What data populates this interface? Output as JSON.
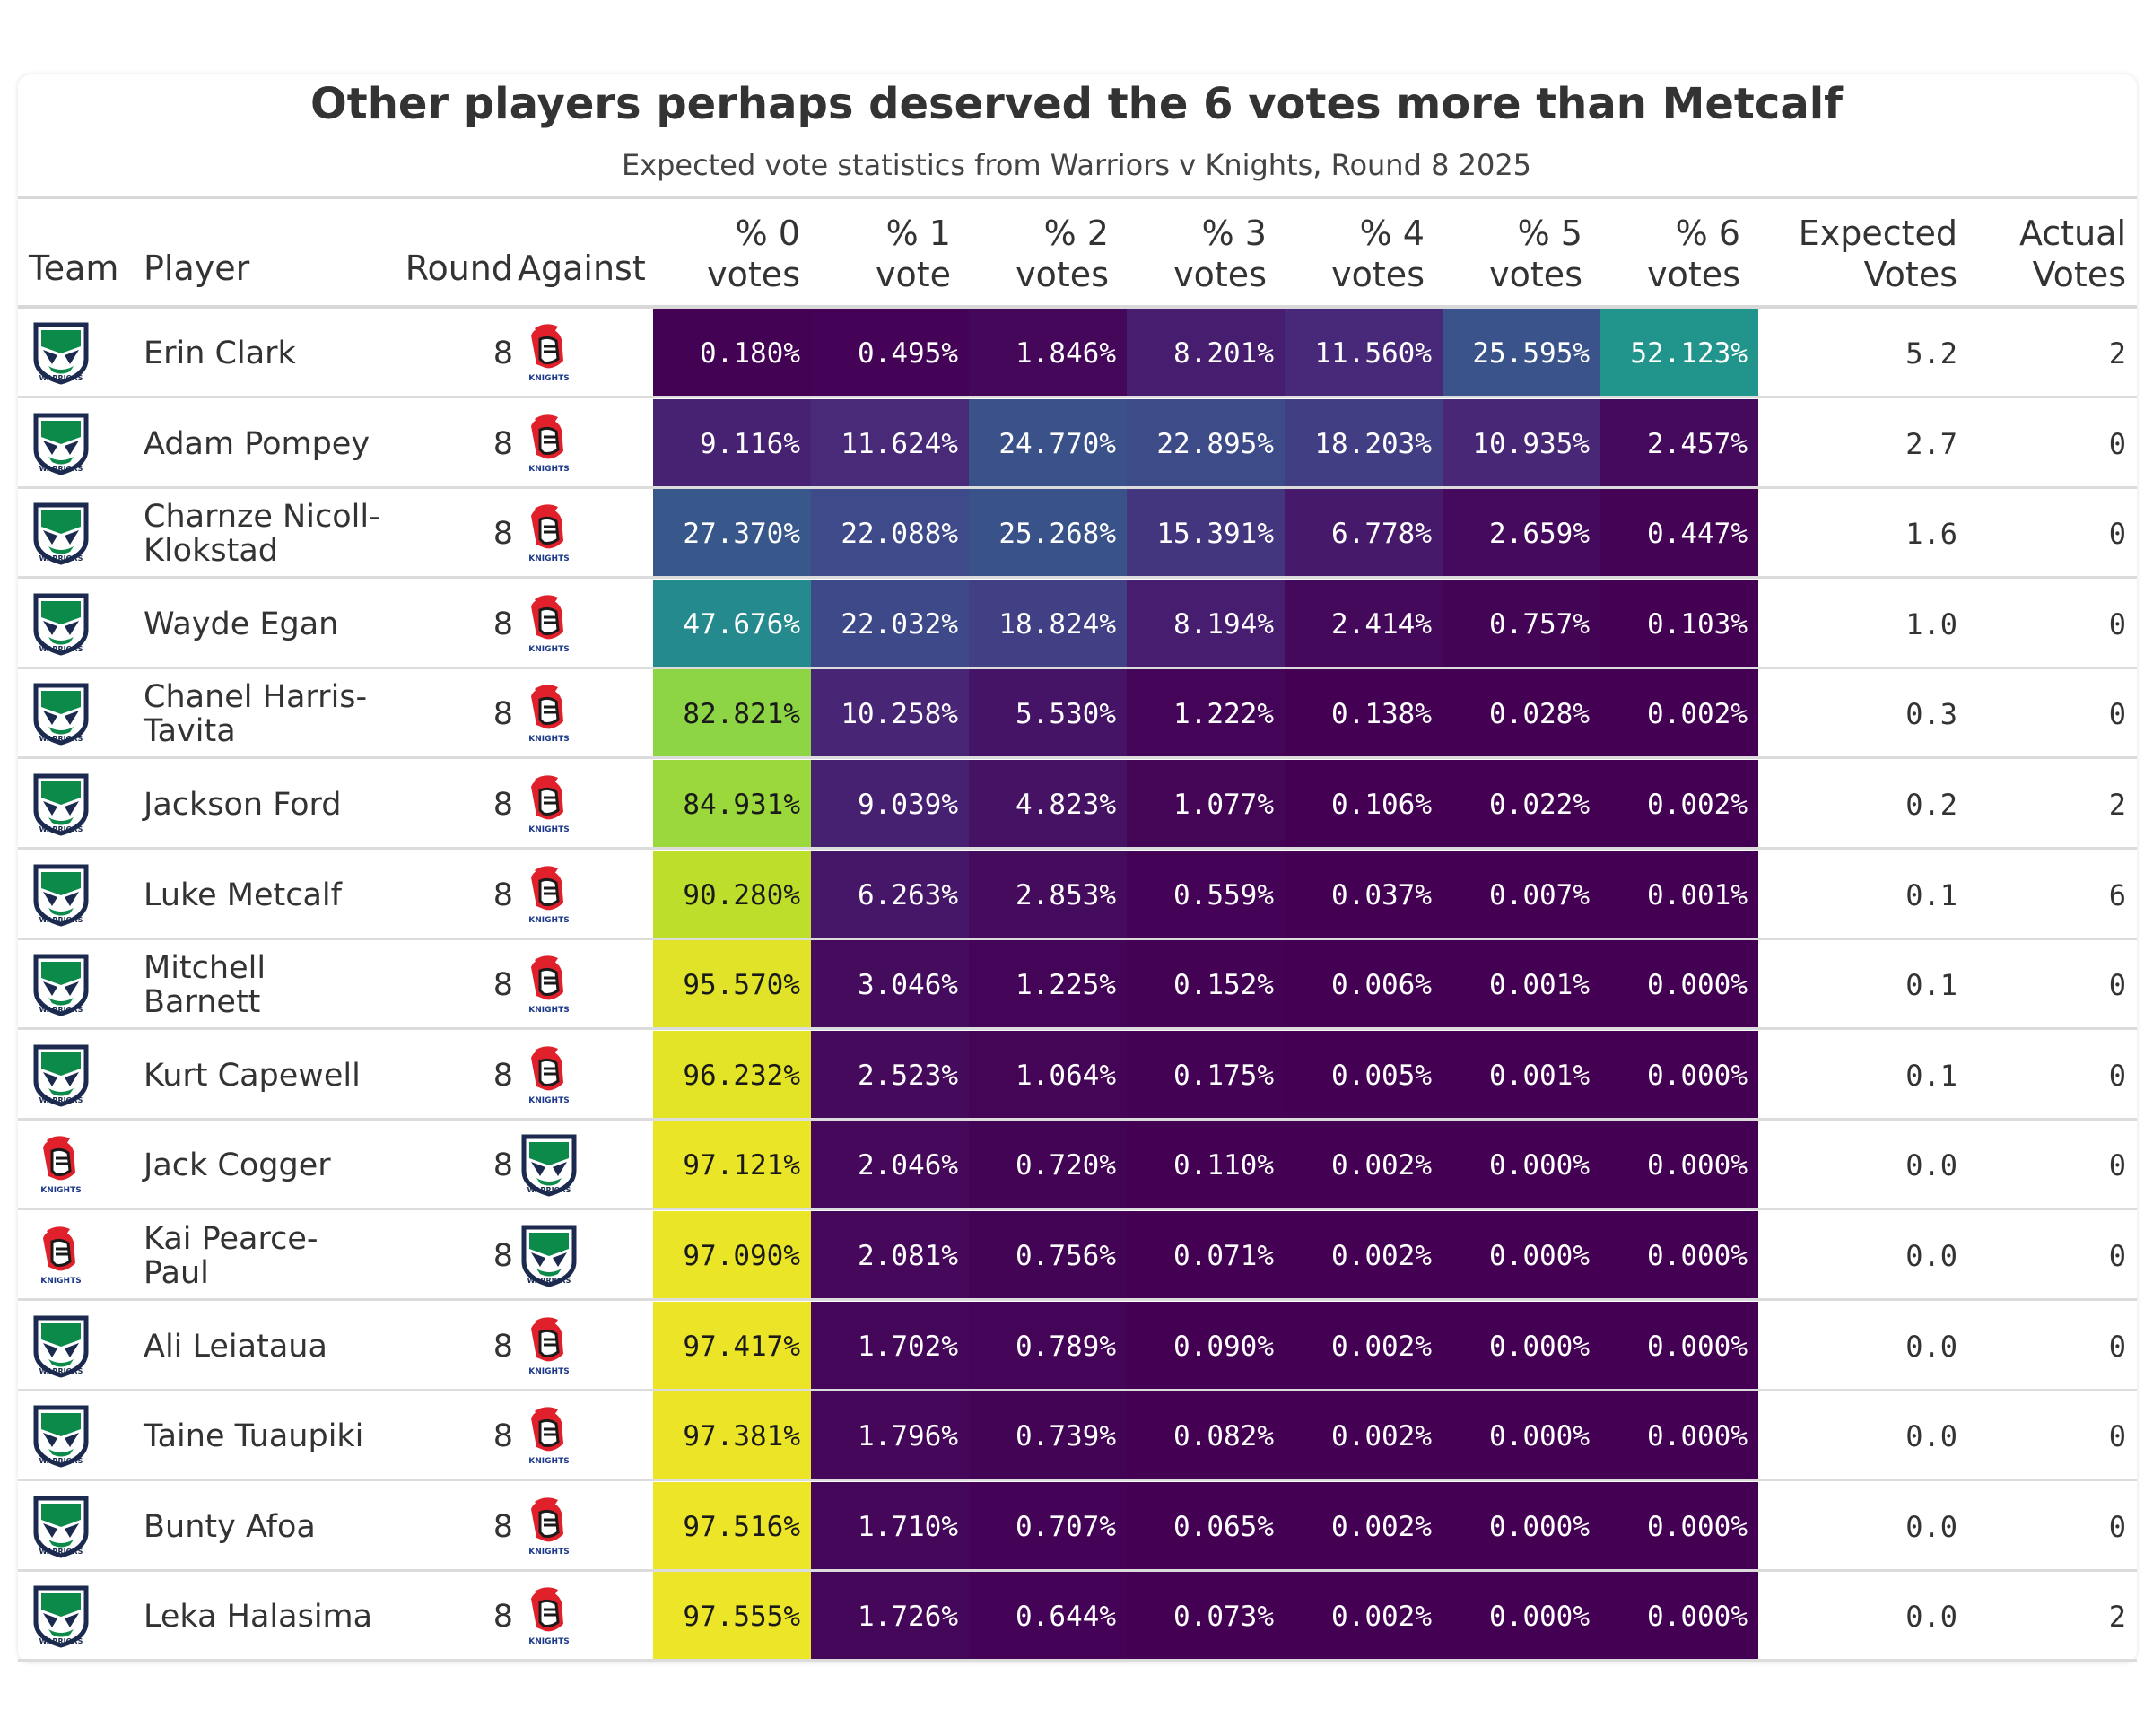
{
  "title": "Other players perhaps deserved the 6 votes more than Metcalf",
  "subtitle": "Expected vote statistics from Warriors v Knights, Round 8 2025",
  "columns": {
    "team": "Team",
    "player": "Player",
    "round": "Round",
    "against": "Against",
    "p0": [
      "% 0",
      "votes"
    ],
    "p1": [
      "% 1",
      "vote"
    ],
    "p2": [
      "% 2",
      "votes"
    ],
    "p3": [
      "% 3",
      "votes"
    ],
    "p4": [
      "% 4",
      "votes"
    ],
    "p5": [
      "% 5",
      "votes"
    ],
    "p6": [
      "% 6",
      "votes"
    ],
    "expected": [
      "Expected",
      "Votes"
    ],
    "actual": [
      "Actual",
      "Votes"
    ]
  },
  "logos": {
    "warriors": "WARRIORS",
    "knights": "KNIGHTS"
  },
  "colors": {
    "warriors_green": "#0b8a4a",
    "warriors_navy": "#1b2a4e",
    "knights_red": "#e0202a",
    "knights_navy": "#1d3a8a"
  },
  "chart_data": {
    "type": "table",
    "rows": [
      {
        "team": "warriors",
        "player": [
          "Erin Clark"
        ],
        "round": "8",
        "against": "knights",
        "p": [
          0.18,
          0.495,
          1.846,
          8.201,
          11.56,
          25.595,
          52.123
        ],
        "expected": "5.2",
        "actual": "2"
      },
      {
        "team": "warriors",
        "player": [
          "Adam Pompey"
        ],
        "round": "8",
        "against": "knights",
        "p": [
          9.116,
          11.624,
          24.77,
          22.895,
          18.203,
          10.935,
          2.457
        ],
        "expected": "2.7",
        "actual": "0"
      },
      {
        "team": "warriors",
        "player": [
          "Charnze Nicoll-",
          "Klokstad"
        ],
        "round": "8",
        "against": "knights",
        "p": [
          27.37,
          22.088,
          25.268,
          15.391,
          6.778,
          2.659,
          0.447
        ],
        "expected": "1.6",
        "actual": "0"
      },
      {
        "team": "warriors",
        "player": [
          "Wayde Egan"
        ],
        "round": "8",
        "against": "knights",
        "p": [
          47.676,
          22.032,
          18.824,
          8.194,
          2.414,
          0.757,
          0.103
        ],
        "expected": "1.0",
        "actual": "0"
      },
      {
        "team": "warriors",
        "player": [
          "Chanel Harris-",
          "Tavita"
        ],
        "round": "8",
        "against": "knights",
        "p": [
          82.821,
          10.258,
          5.53,
          1.222,
          0.138,
          0.028,
          0.002
        ],
        "expected": "0.3",
        "actual": "0"
      },
      {
        "team": "warriors",
        "player": [
          "Jackson Ford"
        ],
        "round": "8",
        "against": "knights",
        "p": [
          84.931,
          9.039,
          4.823,
          1.077,
          0.106,
          0.022,
          0.002
        ],
        "expected": "0.2",
        "actual": "2"
      },
      {
        "team": "warriors",
        "player": [
          "Luke Metcalf"
        ],
        "round": "8",
        "against": "knights",
        "p": [
          90.28,
          6.263,
          2.853,
          0.559,
          0.037,
          0.007,
          0.001
        ],
        "expected": "0.1",
        "actual": "6"
      },
      {
        "team": "warriors",
        "player": [
          "Mitchell",
          "Barnett"
        ],
        "round": "8",
        "against": "knights",
        "p": [
          95.57,
          3.046,
          1.225,
          0.152,
          0.006,
          0.001,
          0.0
        ],
        "expected": "0.1",
        "actual": "0"
      },
      {
        "team": "warriors",
        "player": [
          "Kurt Capewell"
        ],
        "round": "8",
        "against": "knights",
        "p": [
          96.232,
          2.523,
          1.064,
          0.175,
          0.005,
          0.001,
          0.0
        ],
        "expected": "0.1",
        "actual": "0"
      },
      {
        "team": "knights",
        "player": [
          "Jack Cogger"
        ],
        "round": "8",
        "against": "warriors",
        "p": [
          97.121,
          2.046,
          0.72,
          0.11,
          0.002,
          0.0,
          0.0
        ],
        "expected": "0.0",
        "actual": "0"
      },
      {
        "team": "knights",
        "player": [
          "Kai Pearce-",
          "Paul"
        ],
        "round": "8",
        "against": "warriors",
        "p": [
          97.09,
          2.081,
          0.756,
          0.071,
          0.002,
          0.0,
          0.0
        ],
        "expected": "0.0",
        "actual": "0"
      },
      {
        "team": "warriors",
        "player": [
          "Ali Leiataua"
        ],
        "round": "8",
        "against": "knights",
        "p": [
          97.417,
          1.702,
          0.789,
          0.09,
          0.002,
          0.0,
          0.0
        ],
        "expected": "0.0",
        "actual": "0"
      },
      {
        "team": "warriors",
        "player": [
          "Taine Tuaupiki"
        ],
        "round": "8",
        "against": "knights",
        "p": [
          97.381,
          1.796,
          0.739,
          0.082,
          0.002,
          0.0,
          0.0
        ],
        "expected": "0.0",
        "actual": "0"
      },
      {
        "team": "warriors",
        "player": [
          "Bunty Afoa"
        ],
        "round": "8",
        "against": "knights",
        "p": [
          97.516,
          1.71,
          0.707,
          0.065,
          0.002,
          0.0,
          0.0
        ],
        "expected": "0.0",
        "actual": "0"
      },
      {
        "team": "warriors",
        "player": [
          "Leka Halasima"
        ],
        "round": "8",
        "against": "knights",
        "p": [
          97.555,
          1.726,
          0.644,
          0.073,
          0.002,
          0.0,
          0.0
        ],
        "expected": "0.0",
        "actual": "2"
      }
    ],
    "color_scale": "viridis",
    "value_range": [
      0,
      100
    ]
  }
}
